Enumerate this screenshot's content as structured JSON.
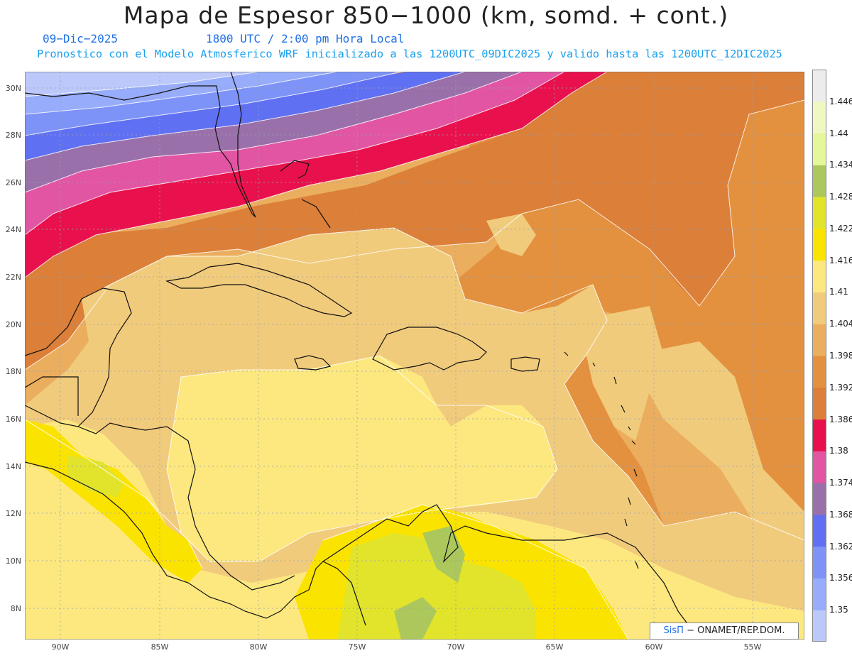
{
  "header": {
    "title": "Mapa de Espesor 850−1000 (km, somd. + cont.)",
    "date": "09−Dic−2025",
    "time": "1800 UTC / 2:00 pm Hora Local",
    "description": "Pronostico con el Modelo Atmosferico WRF inicializado a las 1200UTC_09DIC2025 y valido hasta las  1200UTC_12DIC2025"
  },
  "map": {
    "lat_labels": [
      "30N",
      "28N",
      "26N",
      "24N",
      "22N",
      "20N",
      "18N",
      "16N",
      "14N",
      "12N",
      "10N",
      "8N"
    ],
    "lon_labels": [
      "90W",
      "85W",
      "80W",
      "75W",
      "70W",
      "65W",
      "60W",
      "55W"
    ]
  },
  "colorbar": {
    "labels": [
      "1.446",
      "1.44",
      "1.434",
      "1.428",
      "1.422",
      "1.416",
      "1.41",
      "1.404",
      "1.398",
      "1.392",
      "1.386",
      "1.38",
      "1.374",
      "1.368",
      "1.362",
      "1.356",
      "1.35"
    ],
    "colors": [
      "#bcc8fa",
      "#97acfa",
      "#7d93f8",
      "#6070f2",
      "#9a70aa",
      "#e255a3",
      "#e8114e",
      "#dc7f38",
      "#e3913f",
      "#ebae5e",
      "#f1cb7c",
      "#fde87f",
      "#fbe300",
      "#e1e42a",
      "#acc85c",
      "#e4f89b",
      "#eef8c0",
      "#ececec"
    ]
  },
  "credit": {
    "brand": "SisΠ",
    "text": "− ONAMET/REP.DOM."
  }
}
